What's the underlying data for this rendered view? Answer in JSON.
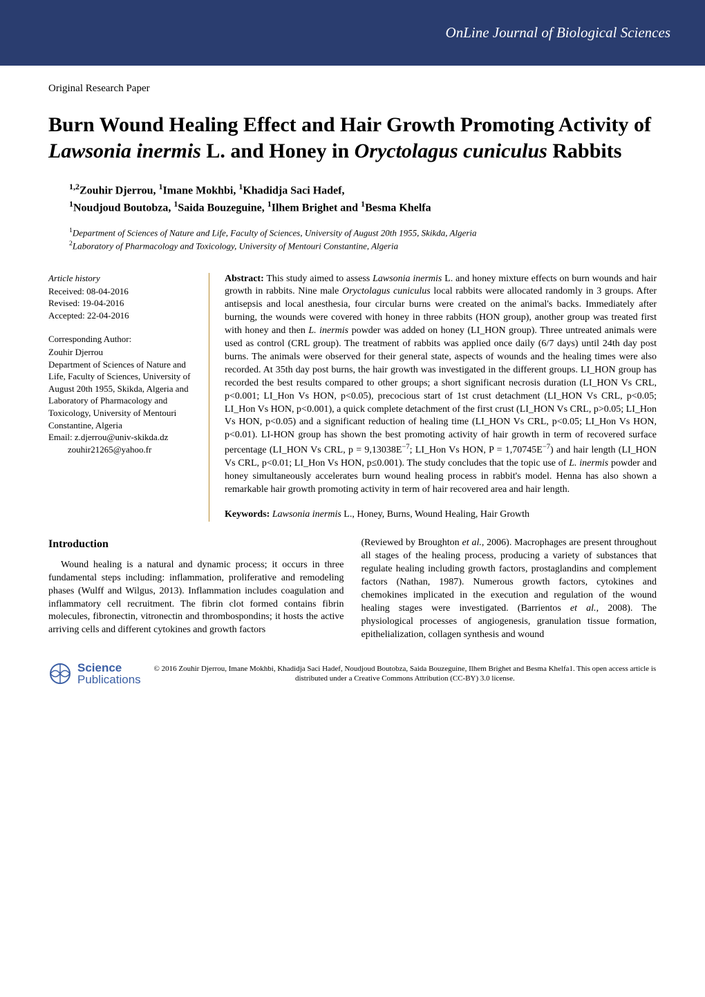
{
  "header": {
    "journal_name": "OnLine Journal of Biological Sciences",
    "band_color": "#2a3d6f",
    "text_color": "#ffffff"
  },
  "paper_type": "Original Research Paper",
  "title_html": "Burn Wound Healing Effect and Hair Growth Promoting Activity of <span class='italic'>Lawsonia inermis</span> L. and Honey in <span class='italic'>Oryctolagus cuniculus</span> Rabbits",
  "authors_html": "<span class='sup'>1,2</span>Zouhir Djerrou, <span class='sup'>1</span>Imane Mokhbi, <span class='sup'>1</span>Khadidja Saci Hadef, <br><span class='sup'>1</span>Noudjoud Boutobza, <span class='sup'>1</span>Saida Bouzeguine, <span class='sup'>1</span>Ilhem Brighet and <span class='sup'>1</span>Besma Khelfa",
  "affiliations_html": "<span class='sup'>1</span>Department of Sciences of Nature and Life, Faculty of Sciences, University of August 20th 1955, Skikda, Algeria<br><span class='sup'>2</span>Laboratory of Pharmacology and Toxicology, University of Mentouri Constantine, Algeria",
  "history": {
    "heading": "Article history",
    "received": "Received: 08-04-2016",
    "revised": "Revised: 19-04-2016",
    "accepted": "Accepted: 22-04-2016"
  },
  "corresponding": {
    "heading": "Corresponding Author:",
    "name": "Zouhir Djerrou",
    "address": "Department of Sciences of Nature and Life, Faculty of Sciences, University of August 20th 1955, Skikda, Algeria and Laboratory of Pharmacology and Toxicology, University of Mentouri Constantine, Algeria",
    "email1": "Email: z.djerrou@univ-skikda.dz",
    "email2": "zouhir21265@yahoo.fr"
  },
  "abstract": {
    "label": "Abstract:",
    "text_html": " This study aimed to assess <span class='italic'>Lawsonia inermis</span> L. and honey mixture effects on burn wounds and hair growth in rabbits. Nine male <span class='italic'>Oryctolagus cuniculus</span> local rabbits were allocated randomly in 3 groups. After antisepsis and local anesthesia, four circular burns were created on the animal's backs. Immediately after burning, the wounds were covered with honey in three rabbits (HON group), another group was treated first with honey and then <span class='italic'>L. inermis</span> powder was added on honey (LI_HON group). Three untreated animals were used as control (CRL group). The treatment of rabbits was applied once daily (6/7 days) until 24th day post burns. The animals were observed for their general state, aspects of wounds and the healing times were also recorded. At 35th day post burns, the hair growth was investigated in the different groups. LI_HON group has recorded the best results compared to other groups; a short significant necrosis duration (LI_HON Vs CRL, p&lt;0.001; LI_Hon Vs HON, p&lt;0.05), precocious start of 1st crust detachment (LI_HON Vs CRL, p&lt;0.05; LI_Hon Vs HON, p&lt;0.001), a quick complete detachment of the first crust (LI_HON Vs CRL, p&gt;0.05; LI_Hon Vs HON, p&lt;0.05) and a significant reduction of healing time (LI_HON Vs CRL, p&lt;0.05; LI_Hon Vs HON, p&lt;0.01). LI-HON group has shown the best promoting activity of hair growth in term of recovered surface percentage (LI_HON Vs CRL, p = 9,13038E<span class='sup'>−7</span>; LI_Hon Vs HON, P = 1,70745E<span class='sup'>−7</span>) and hair length (LI_HON Vs CRL, p&lt;0.01; LI_Hon Vs HON, p≤0.001). The study concludes that the topic use of <span class='italic'>L. inermis</span> powder and honey simultaneously accelerates burn wound healing process in rabbit's model. Henna has also shown a remarkable hair growth promoting activity in term of hair recovered area and hair length."
  },
  "keywords": {
    "label": "Keywords:",
    "text_html": " <span class='italic'>Lawsonia inermis</span> L., Honey, Burns, Wound Healing, Hair Growth"
  },
  "body": {
    "heading": "Introduction",
    "col1_html": "Wound healing is a natural and dynamic process; it occurs in three fundamental steps including: inflammation, proliferative and remodeling phases (Wulff and Wilgus, 2013). Inflammation includes coagulation and inflammatory cell recruitment. The fibrin clot formed contains fibrin molecules, fibronectin, vitronectin and thrombospondins; it hosts the active arriving cells and different cytokines and growth factors",
    "col2_html": "(Reviewed by Broughton <span class='italic'>et al.</span>, 2006). Macrophages are present throughout all stages of the healing process, producing a variety of substances that regulate healing including growth factors, prostaglandins and complement factors (Nathan, 1987). Numerous growth factors, cytokines and chemokines implicated in the execution and regulation of the wound healing stages were investigated. (Barrientos <span class='italic'>et al.</span>, 2008). The physiological processes of angiogenesis, granulation tissue formation, epithelialization, collagen synthesis and wound"
  },
  "footer": {
    "logo_line1": "Science",
    "logo_line2": "Publications",
    "logo_color": "#3b5fa5",
    "copyright": "© 2016 Zouhir Djerrou, Imane Mokhbi, Khadidja Saci Hadef, Noudjoud Boutobza, Saida Bouzeguine, Ilhem Brighet and Besma Khelfa1. This open access article is distributed under a Creative Commons Attribution (CC-BY) 3.0 license."
  },
  "style": {
    "divider_color": "#b88a2e",
    "body_fontsize": 14,
    "title_fontsize": 30
  }
}
